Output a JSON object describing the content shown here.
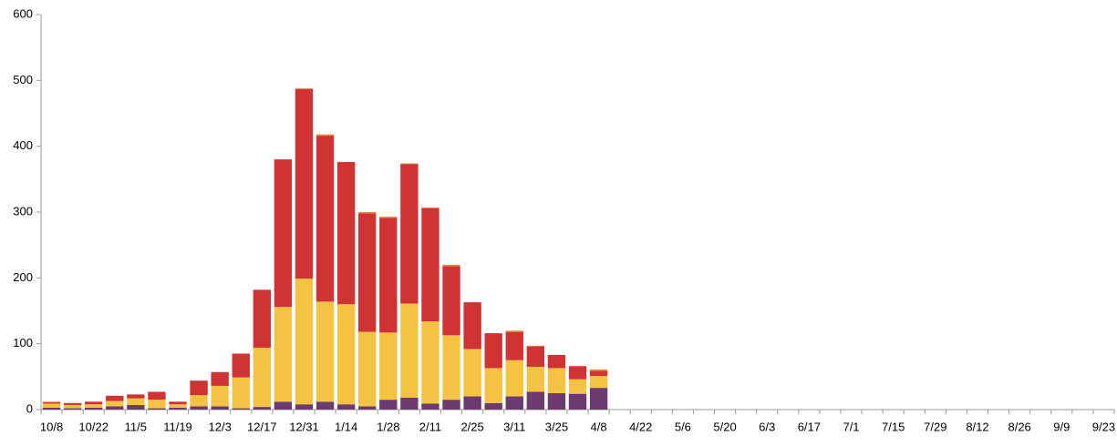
{
  "chart_data": {
    "type": "stacked-bar",
    "categories": [
      "10/8",
      null,
      "10/22",
      null,
      "11/5",
      null,
      "11/19",
      null,
      "12/3",
      null,
      "12/17",
      null,
      "12/31",
      null,
      "1/14",
      null,
      "1/28",
      null,
      "2/11",
      null,
      "2/25",
      null,
      "3/11",
      null,
      "3/25",
      null,
      "4/8",
      null,
      "4/22",
      null,
      "5/6",
      null,
      "5/20",
      null,
      "6/3",
      null,
      "6/17",
      null,
      "7/1",
      null,
      "7/15",
      null,
      "7/29",
      null,
      "8/12",
      null,
      "8/26",
      null,
      "9/9",
      null,
      "9/23"
    ],
    "series": [
      {
        "color": "#6b3a6f",
        "values": [
          3,
          2,
          3,
          5,
          7,
          2,
          3,
          5,
          5,
          2,
          4,
          12,
          8,
          12,
          8,
          5,
          15,
          18,
          9,
          15,
          20,
          10,
          20,
          27,
          25,
          24,
          33,
          null,
          null,
          null,
          null,
          null,
          null,
          null,
          null,
          null,
          null,
          null,
          null,
          null,
          null,
          null,
          null,
          null,
          null,
          null,
          null,
          null,
          null,
          null,
          null
        ]
      },
      {
        "color": "#f5c344",
        "values": [
          6,
          5,
          5,
          8,
          10,
          13,
          5,
          17,
          31,
          47,
          90,
          144,
          191,
          152,
          152,
          113,
          102,
          143,
          125,
          98,
          72,
          53,
          55,
          38,
          38,
          22,
          18,
          null,
          null,
          null,
          null,
          null,
          null,
          null,
          null,
          null,
          null,
          null,
          null,
          null,
          null,
          null,
          null,
          null,
          null,
          null,
          null,
          null,
          null,
          null,
          null
        ]
      },
      {
        "color": "#d03333",
        "values": [
          2,
          3,
          4,
          8,
          6,
          12,
          4,
          22,
          21,
          36,
          88,
          224,
          288,
          252,
          216,
          180,
          174,
          212,
          172,
          105,
          71,
          53,
          43,
          31,
          20,
          20,
          8,
          null,
          null,
          null,
          null,
          null,
          null,
          null,
          null,
          null,
          null,
          null,
          null,
          null,
          null,
          null,
          null,
          null,
          null,
          null,
          null,
          null,
          null,
          null,
          null
        ]
      },
      {
        "color": "#e98a3a",
        "values": [
          1,
          0,
          0,
          0,
          0,
          0,
          0,
          0,
          0,
          0,
          0,
          0,
          1,
          2,
          0,
          2,
          2,
          1,
          1,
          2,
          0,
          0,
          2,
          1,
          0,
          0,
          2,
          null,
          null,
          null,
          null,
          null,
          null,
          null,
          null,
          null,
          null,
          null,
          null,
          null,
          null,
          null,
          null,
          null,
          null,
          null,
          null,
          null,
          null,
          null,
          null
        ]
      }
    ],
    "ylim": [
      0,
      600
    ],
    "yticks": [
      0,
      100,
      200,
      300,
      400,
      500,
      600
    ],
    "grid": false
  }
}
